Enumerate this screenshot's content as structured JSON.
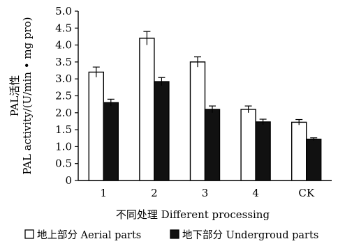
{
  "chart_data": {
    "type": "bar",
    "title": "",
    "ylabel_lines": [
      "PAL活性",
      "PAL activity/(U/min • mg pro)"
    ],
    "xlabel": "不同处理  Different processing",
    "categories": [
      "1",
      "2",
      "3",
      "4",
      "CK"
    ],
    "ylim": [
      0,
      5
    ],
    "yticks": [
      "0",
      "0.5",
      "1.0",
      "1.5",
      "2.0",
      "2.5",
      "3.0",
      "3.5",
      "4.0",
      "4.5",
      "5.0"
    ],
    "grid": false,
    "legend_position": "bottom",
    "series": [
      {
        "name": "地上部分 Aerial parts",
        "fill": "#ffffff",
        "values": [
          3.2,
          4.2,
          3.5,
          2.1,
          1.72
        ],
        "errors": [
          0.15,
          0.2,
          0.15,
          0.1,
          0.08
        ]
      },
      {
        "name": "地下部分 Undergroud parts",
        "fill": "#111111",
        "values": [
          2.3,
          2.92,
          2.1,
          1.73,
          1.22
        ],
        "errors": [
          0.1,
          0.12,
          0.1,
          0.08,
          0.04
        ]
      }
    ]
  }
}
